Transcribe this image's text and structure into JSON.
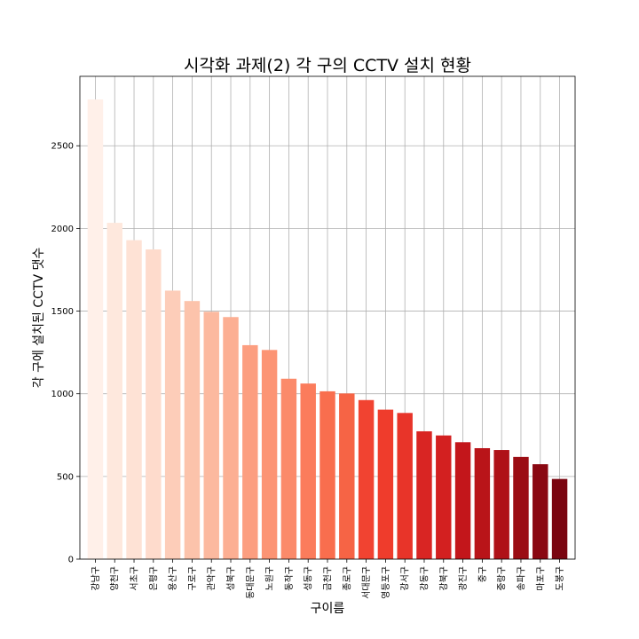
{
  "chart_data": {
    "type": "bar",
    "title": "시각화 과제(2) 각 구의 CCTV 설치 현황",
    "xlabel": "구이름",
    "ylabel": "각 구에 설치된 CCTV 댓수",
    "ylim": [
      0,
      2920
    ],
    "yticks": [
      0,
      500,
      1000,
      1500,
      2000,
      2500
    ],
    "grid": true,
    "colormap": "Reds",
    "categories": [
      "강남구",
      "양천구",
      "서초구",
      "은평구",
      "용산구",
      "구로구",
      "관악구",
      "성북구",
      "동대문구",
      "노원구",
      "동작구",
      "성동구",
      "금천구",
      "종로구",
      "서대문구",
      "영등포구",
      "강서구",
      "강동구",
      "강북구",
      "광진구",
      "중구",
      "중랑구",
      "송파구",
      "마포구",
      "도봉구"
    ],
    "values": [
      2780,
      2034,
      1929,
      1873,
      1624,
      1561,
      1496,
      1464,
      1294,
      1265,
      1091,
      1062,
      1015,
      1002,
      962,
      904,
      884,
      773,
      748,
      707,
      671,
      660,
      618,
      574,
      485
    ],
    "colors": [
      "#fff0e9",
      "#fee8dd",
      "#fee2d5",
      "#fedbcc",
      "#fdcdb9",
      "#fcc3ab",
      "#fcb99f",
      "#fcaf93",
      "#fc9e80",
      "#fc9474",
      "#fb8a6a",
      "#fb7c5c",
      "#f96e4e",
      "#f66445",
      "#f14331",
      "#ef3c2c",
      "#e83429",
      "#d92523",
      "#d32020",
      "#c3161b",
      "#b91419",
      "#af1117",
      "#9b0d14",
      "#8a0812",
      "#7a0510"
    ]
  }
}
